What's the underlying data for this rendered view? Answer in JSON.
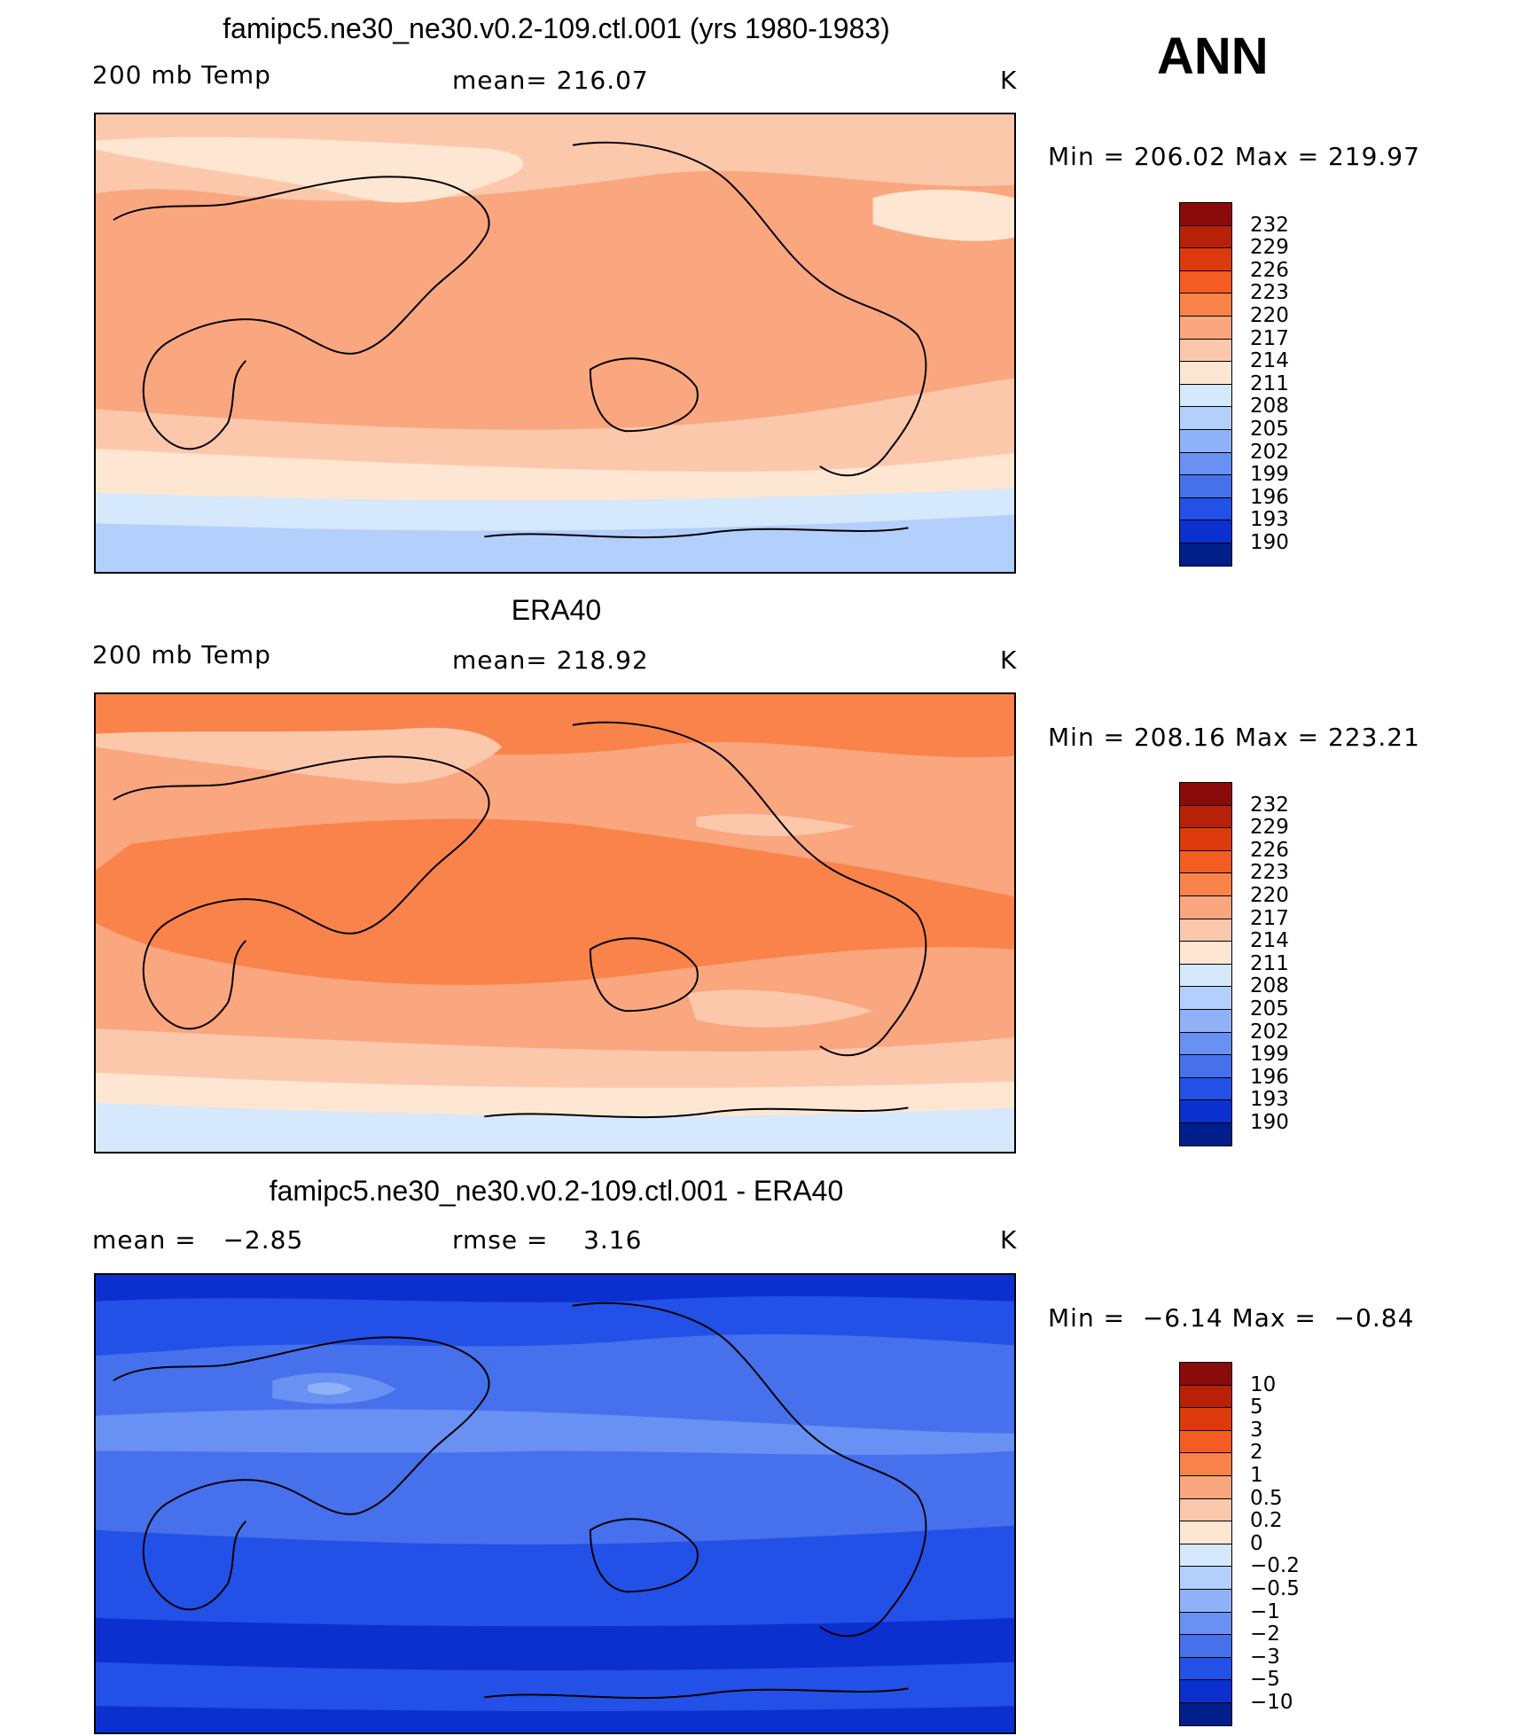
{
  "season": "ANN",
  "panels": [
    {
      "title": "famipc5.ne30_ne30.v0.2-109.ctl.001 (yrs 1980-1983)",
      "left": "200 mb Temp",
      "center": "mean= 216.07",
      "units": "K",
      "minmax": "Min = 206.02 Max = 219.97",
      "palette_key": "abs"
    },
    {
      "title": "ERA40",
      "left": "200 mb Temp",
      "center": "mean= 218.92",
      "units": "K",
      "minmax": "Min = 208.16 Max = 223.21",
      "palette_key": "abs"
    },
    {
      "title": "famipc5.ne30_ne30.v0.2-109.ctl.001 - ERA40",
      "left": "mean =   −2.85",
      "center": "rmse =    3.16",
      "units": "K",
      "minmax": "Min =  −6.14 Max =  −0.84",
      "palette_key": "diff"
    }
  ],
  "colorbars": {
    "abs": {
      "labels": [
        "232",
        "229",
        "226",
        "223",
        "220",
        "217",
        "214",
        "211",
        "208",
        "205",
        "202",
        "199",
        "196",
        "193",
        "190"
      ],
      "colors": [
        "#8b0a0a",
        "#b82108",
        "#dc3a0c",
        "#f45c22",
        "#f9834b",
        "#faa67f",
        "#fcc8ac",
        "#fde6d2",
        "#d6e8fb",
        "#b3cffb",
        "#8fb1f7",
        "#6990f3",
        "#4670ec",
        "#2350e6",
        "#0c2fd0",
        "#011f8a"
      ]
    },
    "diff": {
      "labels": [
        "10",
        "5",
        "3",
        "2",
        "1",
        "0.5",
        "0.2",
        "0",
        "−0.2",
        "−0.5",
        "−1",
        "−2",
        "−3",
        "−5",
        "−10"
      ],
      "colors": [
        "#8b0a0a",
        "#b82108",
        "#dc3a0c",
        "#f45c22",
        "#f9834b",
        "#faa67f",
        "#fcc8ac",
        "#fde6d2",
        "#d6e8fb",
        "#b3cffb",
        "#8fb1f7",
        "#6990f3",
        "#4670ec",
        "#2350e6",
        "#0c2fd0",
        "#011f8a"
      ]
    }
  },
  "chart_data": [
    {
      "type": "heatmap",
      "title": "famipc5.ne30_ne30.v0.2-109.ctl.001 (yrs 1980-1983)",
      "variable": "200 mb Temp",
      "units": "K",
      "mean": 216.07,
      "min": 206.02,
      "max": 219.97,
      "contour_levels": [
        190,
        193,
        196,
        199,
        202,
        205,
        208,
        211,
        214,
        217,
        220,
        223,
        226,
        229,
        232
      ],
      "zonal_bands": [
        {
          "lat_range": [
            70,
            90
          ],
          "value_range": [
            214,
            217
          ]
        },
        {
          "lat_range": [
            35,
            70
          ],
          "value_range": [
            211,
            217
          ]
        },
        {
          "lat_range": [
            -35,
            35
          ],
          "value_range": [
            217,
            220
          ]
        },
        {
          "lat_range": [
            -55,
            -35
          ],
          "value_range": [
            211,
            217
          ]
        },
        {
          "lat_range": [
            -70,
            -55
          ],
          "value_range": [
            208,
            211
          ]
        },
        {
          "lat_range": [
            -90,
            -70
          ],
          "value_range": [
            205,
            208
          ]
        }
      ]
    },
    {
      "type": "heatmap",
      "title": "ERA40",
      "variable": "200 mb Temp",
      "units": "K",
      "mean": 218.92,
      "min": 208.16,
      "max": 223.21,
      "contour_levels": [
        190,
        193,
        196,
        199,
        202,
        205,
        208,
        211,
        214,
        217,
        220,
        223,
        226,
        229,
        232
      ],
      "zonal_bands": [
        {
          "lat_range": [
            70,
            90
          ],
          "value_range": [
            220,
            223
          ]
        },
        {
          "lat_range": [
            40,
            70
          ],
          "value_range": [
            214,
            220
          ]
        },
        {
          "lat_range": [
            -35,
            40
          ],
          "value_range": [
            220,
            223
          ]
        },
        {
          "lat_range": [
            -60,
            -35
          ],
          "value_range": [
            214,
            220
          ]
        },
        {
          "lat_range": [
            -75,
            -60
          ],
          "value_range": [
            211,
            214
          ]
        },
        {
          "lat_range": [
            -90,
            -75
          ],
          "value_range": [
            208,
            211
          ]
        }
      ]
    },
    {
      "type": "heatmap",
      "title": "famipc5.ne30_ne30.v0.2-109.ctl.001 - ERA40",
      "units": "K",
      "mean": -2.85,
      "rmse": 3.16,
      "min": -6.14,
      "max": -0.84,
      "contour_levels": [
        -10,
        -5,
        -3,
        -2,
        -1,
        -0.5,
        -0.2,
        0,
        0.2,
        0.5,
        1,
        2,
        3,
        5,
        10
      ],
      "zonal_bands": [
        {
          "lat_range": [
            60,
            90
          ],
          "value_range": [
            -5,
            -3
          ]
        },
        {
          "lat_range": [
            30,
            60
          ],
          "value_range": [
            -3,
            -1
          ]
        },
        {
          "lat_range": [
            -30,
            30
          ],
          "value_range": [
            -3,
            -2
          ]
        },
        {
          "lat_range": [
            -60,
            -30
          ],
          "value_range": [
            -5,
            -3
          ]
        },
        {
          "lat_range": [
            -90,
            -60
          ],
          "value_range": [
            -10,
            -5
          ]
        }
      ]
    }
  ]
}
